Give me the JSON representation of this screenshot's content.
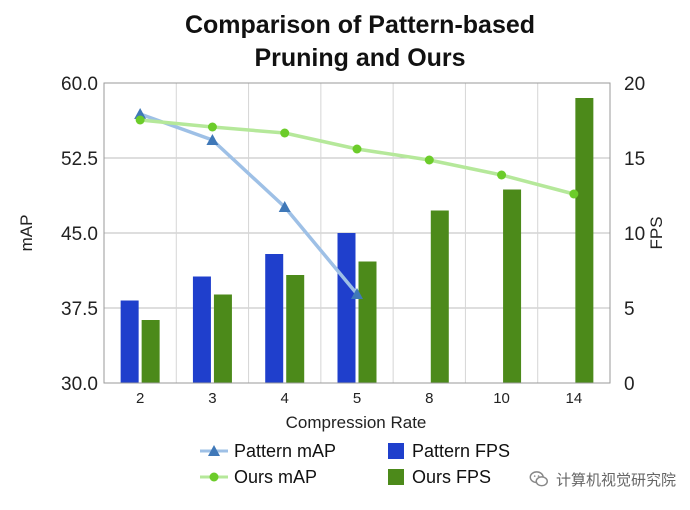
{
  "chart_data": {
    "type": "bar+line",
    "title_lines": [
      "Comparison of Pattern-based",
      "Pruning and Ours"
    ],
    "xlabel": "Compression Rate",
    "ylabel_left": "mAP",
    "ylabel_right": "FPS",
    "categories": [
      "2",
      "3",
      "4",
      "5",
      "8",
      "10",
      "14"
    ],
    "ylim_left": [
      30.0,
      60.0
    ],
    "ylim_right": [
      0,
      20
    ],
    "left_ticks": [
      "30.0",
      "37.5",
      "45.0",
      "52.5",
      "60.0"
    ],
    "right_ticks": [
      "0",
      "5",
      "10",
      "15",
      "20"
    ],
    "grid": "horizontal",
    "bar_series": [
      {
        "name": "Pattern FPS",
        "color": "#1f3fcc",
        "values": [
          5.5,
          7.1,
          8.6,
          10.0,
          null,
          null,
          null
        ]
      },
      {
        "name": "Ours FPS",
        "color": "#4c8a1a",
        "values": [
          4.2,
          5.9,
          7.2,
          8.1,
          11.5,
          12.9,
          19.0
        ]
      }
    ],
    "line_series": [
      {
        "name": "Pattern mAP",
        "color": "#9ec0e6",
        "marker": "triangle",
        "marker_color": "#3f78b8",
        "values": [
          56.9,
          54.3,
          47.6,
          38.9,
          null,
          null,
          null
        ]
      },
      {
        "name": "Ours mAP",
        "color": "#b5e89a",
        "marker": "circle",
        "marker_color": "#6ccc2a",
        "values": [
          56.3,
          55.6,
          55.0,
          53.4,
          52.3,
          50.8,
          48.9
        ]
      }
    ],
    "legend": [
      "Pattern mAP",
      "Pattern FPS",
      "Ours mAP",
      "Ours FPS"
    ]
  },
  "watermark": {
    "text": "计算机视觉研究院",
    "icon": "wechat-icon"
  }
}
